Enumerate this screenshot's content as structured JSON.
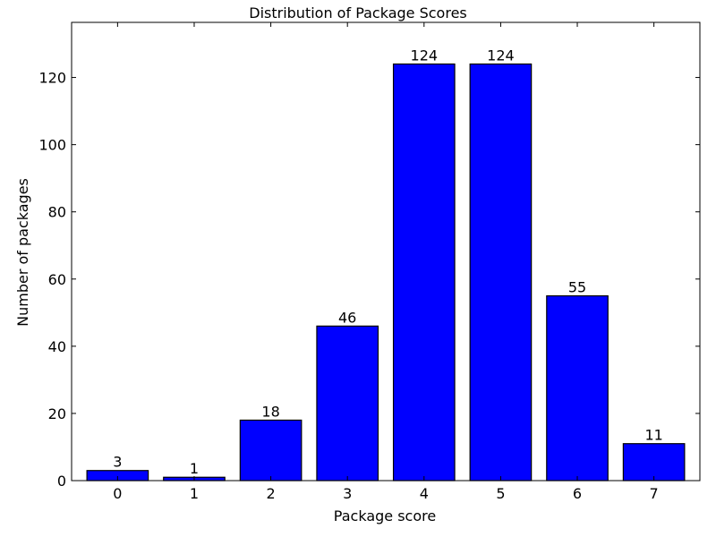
{
  "chart_data": {
    "type": "bar",
    "title": "Distribution of Package Scores",
    "xlabel": "Package score",
    "ylabel": "Number of packages",
    "categories": [
      "0",
      "1",
      "2",
      "3",
      "4",
      "5",
      "6",
      "7"
    ],
    "values": [
      3,
      1,
      18,
      46,
      124,
      124,
      55,
      11
    ],
    "ylim": [
      0,
      136.4
    ],
    "yticks": [
      0,
      20,
      40,
      60,
      80,
      100,
      120
    ],
    "bar_color": "#0000ff",
    "grid": false,
    "legend": "none"
  }
}
